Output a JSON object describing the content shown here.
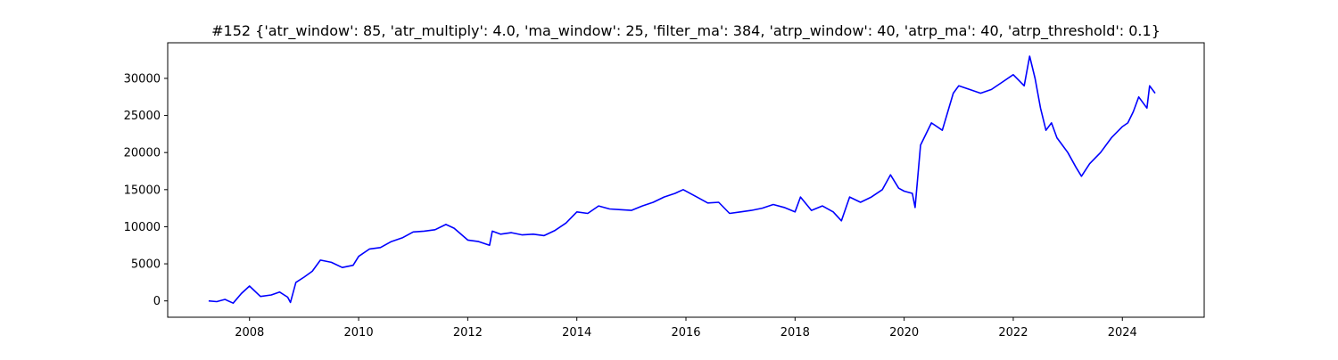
{
  "chart_data": {
    "type": "line",
    "title": "#152 {'atr_window': 85, 'atr_multiply': 4.0, 'ma_window': 25, 'filter_ma': 384, 'atrp_window': 40, 'atrp_ma': 40, 'atrp_threshold': 0.1}",
    "xlabel": "",
    "ylabel": "",
    "xlim": [
      2006.5,
      2025.5
    ],
    "ylim": [
      -2200,
      34800
    ],
    "x_ticks": [
      2008,
      2010,
      2012,
      2014,
      2016,
      2018,
      2020,
      2022,
      2024
    ],
    "x_tick_labels": [
      "2008",
      "2010",
      "2012",
      "2014",
      "2016",
      "2018",
      "2020",
      "2022",
      "2024"
    ],
    "y_ticks": [
      0,
      5000,
      10000,
      15000,
      20000,
      25000,
      30000
    ],
    "y_tick_labels": [
      "0",
      "5000",
      "10000",
      "15000",
      "20000",
      "25000",
      "30000"
    ],
    "grid": false,
    "legend": "none",
    "series": [
      {
        "color": "#0000ff",
        "x": [
          2007.25,
          2007.4,
          2007.55,
          2007.7,
          2007.85,
          2008.0,
          2008.2,
          2008.4,
          2008.55,
          2008.7,
          2008.75,
          2008.85,
          2009.0,
          2009.15,
          2009.3,
          2009.5,
          2009.7,
          2009.9,
          2010.0,
          2010.2,
          2010.4,
          2010.6,
          2010.8,
          2011.0,
          2011.2,
          2011.4,
          2011.6,
          2011.75,
          2012.0,
          2012.2,
          2012.4,
          2012.45,
          2012.6,
          2012.8,
          2013.0,
          2013.2,
          2013.4,
          2013.6,
          2013.8,
          2014.0,
          2014.2,
          2014.4,
          2014.6,
          2014.8,
          2015.0,
          2015.2,
          2015.4,
          2015.6,
          2015.8,
          2015.95,
          2016.2,
          2016.4,
          2016.6,
          2016.8,
          2017.0,
          2017.2,
          2017.4,
          2017.6,
          2017.8,
          2018.0,
          2018.1,
          2018.3,
          2018.5,
          2018.7,
          2018.85,
          2019.0,
          2019.2,
          2019.4,
          2019.6,
          2019.75,
          2019.9,
          2020.0,
          2020.15,
          2020.2,
          2020.3,
          2020.5,
          2020.7,
          2020.9,
          2021.0,
          2021.2,
          2021.4,
          2021.6,
          2021.8,
          2022.0,
          2022.2,
          2022.3,
          2022.4,
          2022.5,
          2022.6,
          2022.7,
          2022.8,
          2022.9,
          2023.0,
          2023.15,
          2023.25,
          2023.4,
          2023.6,
          2023.8,
          2024.0,
          2024.1,
          2024.2,
          2024.3,
          2024.45,
          2024.5,
          2024.6
        ],
        "y": [
          0,
          -100,
          200,
          -300,
          1000,
          2000,
          600,
          800,
          1200,
          500,
          -200,
          2500,
          3200,
          4000,
          5500,
          5200,
          4500,
          4800,
          6000,
          7000,
          7200,
          8000,
          8500,
          9300,
          9400,
          9600,
          10300,
          9800,
          8200,
          8000,
          7500,
          9400,
          9000,
          9200,
          8900,
          9000,
          8800,
          9500,
          10500,
          12000,
          11800,
          12800,
          12400,
          12300,
          12200,
          12800,
          13300,
          14000,
          14500,
          15000,
          14000,
          13200,
          13300,
          11800,
          12000,
          12200,
          12500,
          13000,
          12600,
          12000,
          14000,
          12200,
          12800,
          12000,
          10800,
          14000,
          13300,
          14000,
          15000,
          17000,
          15200,
          14800,
          14500,
          12600,
          21000,
          24000,
          23000,
          28000,
          29000,
          28500,
          28000,
          28500,
          29500,
          30500,
          29000,
          33000,
          30000,
          26000,
          23000,
          24000,
          22000,
          21000,
          20000,
          18000,
          16800,
          18500,
          20000,
          22000,
          23500,
          24000,
          25500,
          27500,
          26000,
          29000,
          28000
        ]
      }
    ]
  }
}
